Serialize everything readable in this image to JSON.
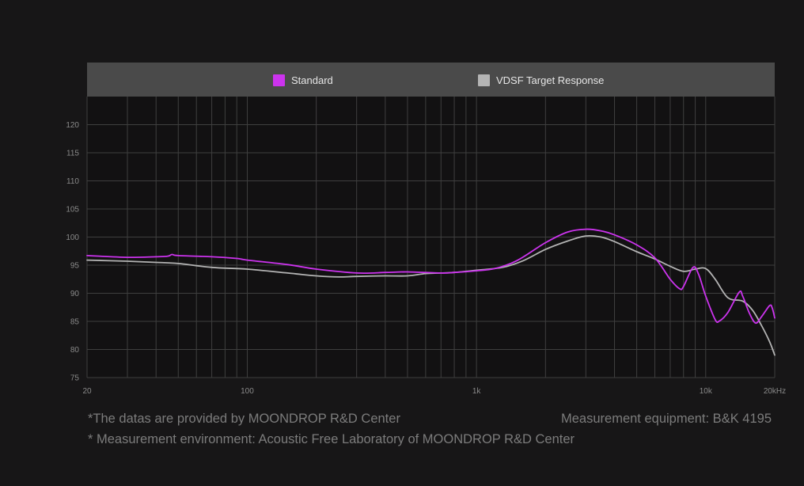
{
  "legend": {
    "items": [
      {
        "label": "Standard",
        "color": "#cc33ee"
      },
      {
        "label": "VDSF Target Response",
        "color": "#b4b4b4"
      }
    ]
  },
  "footer": {
    "source_note": "*The datas are provided by MOONDROP R&D Center",
    "equipment_note": "Measurement equipment: B&K 4195",
    "environment_note": "* Measurement environment: Acoustic Free Laboratory of MOONDROP R&D Center"
  },
  "chart_data": {
    "type": "line",
    "title": "",
    "xlabel": "",
    "ylabel": "",
    "xscale": "log",
    "xlim": [
      20,
      20000
    ],
    "ylim": [
      75,
      125
    ],
    "grid": true,
    "legend_position": "top",
    "x_ticks": [
      {
        "value": 20,
        "label": "20"
      },
      {
        "value": 100,
        "label": "100"
      },
      {
        "value": 1000,
        "label": "1k"
      },
      {
        "value": 10000,
        "label": "10k"
      },
      {
        "value": 20000,
        "label": "20kHz"
      }
    ],
    "y_ticks": [
      75,
      80,
      85,
      90,
      95,
      100,
      105,
      110,
      115,
      120
    ],
    "series": [
      {
        "name": "Standard",
        "color": "#cc33ee",
        "points": [
          [
            20,
            96.7
          ],
          [
            30,
            96.4
          ],
          [
            40,
            96.5
          ],
          [
            45,
            96.6
          ],
          [
            47,
            96.9
          ],
          [
            50,
            96.7
          ],
          [
            70,
            96.5
          ],
          [
            90,
            96.2
          ],
          [
            100,
            95.9
          ],
          [
            150,
            95.1
          ],
          [
            200,
            94.3
          ],
          [
            300,
            93.6
          ],
          [
            400,
            93.7
          ],
          [
            500,
            93.8
          ],
          [
            700,
            93.6
          ],
          [
            800,
            93.7
          ],
          [
            1000,
            94.0
          ],
          [
            1200,
            94.4
          ],
          [
            1500,
            95.8
          ],
          [
            2000,
            99.0
          ],
          [
            2500,
            100.9
          ],
          [
            3000,
            101.4
          ],
          [
            3500,
            101.1
          ],
          [
            4000,
            100.4
          ],
          [
            5000,
            98.6
          ],
          [
            6000,
            96.3
          ],
          [
            7000,
            92.5
          ],
          [
            7700,
            90.8
          ],
          [
            8000,
            91.2
          ],
          [
            8800,
            94.6
          ],
          [
            9300,
            93.4
          ],
          [
            10000,
            89.5
          ],
          [
            11000,
            85.3
          ],
          [
            11500,
            85.1
          ],
          [
            12500,
            86.6
          ],
          [
            14000,
            90.2
          ],
          [
            14500,
            89.5
          ],
          [
            15500,
            86.5
          ],
          [
            16500,
            84.7
          ],
          [
            17500,
            85.8
          ],
          [
            19000,
            87.8
          ],
          [
            19500,
            87.4
          ],
          [
            20000,
            85.6
          ]
        ]
      },
      {
        "name": "VDSF Target Response",
        "color": "#b4b4b4",
        "points": [
          [
            20,
            95.9
          ],
          [
            30,
            95.7
          ],
          [
            40,
            95.5
          ],
          [
            50,
            95.3
          ],
          [
            70,
            94.6
          ],
          [
            100,
            94.3
          ],
          [
            150,
            93.6
          ],
          [
            200,
            93.1
          ],
          [
            250,
            92.9
          ],
          [
            300,
            93.0
          ],
          [
            400,
            93.1
          ],
          [
            500,
            93.1
          ],
          [
            600,
            93.5
          ],
          [
            700,
            93.6
          ],
          [
            800,
            93.7
          ],
          [
            1000,
            94.1
          ],
          [
            1300,
            94.6
          ],
          [
            1600,
            95.8
          ],
          [
            2000,
            97.8
          ],
          [
            2500,
            99.3
          ],
          [
            3000,
            100.2
          ],
          [
            3500,
            100.0
          ],
          [
            4000,
            99.2
          ],
          [
            5000,
            97.4
          ],
          [
            6000,
            96.1
          ],
          [
            7000,
            94.8
          ],
          [
            8000,
            93.9
          ],
          [
            9000,
            94.3
          ],
          [
            10000,
            94.4
          ],
          [
            11000,
            92.5
          ],
          [
            12500,
            89.2
          ],
          [
            14500,
            88.6
          ],
          [
            16000,
            87.0
          ],
          [
            17500,
            84.3
          ],
          [
            19000,
            81.4
          ],
          [
            20000,
            79.0
          ]
        ]
      }
    ]
  }
}
